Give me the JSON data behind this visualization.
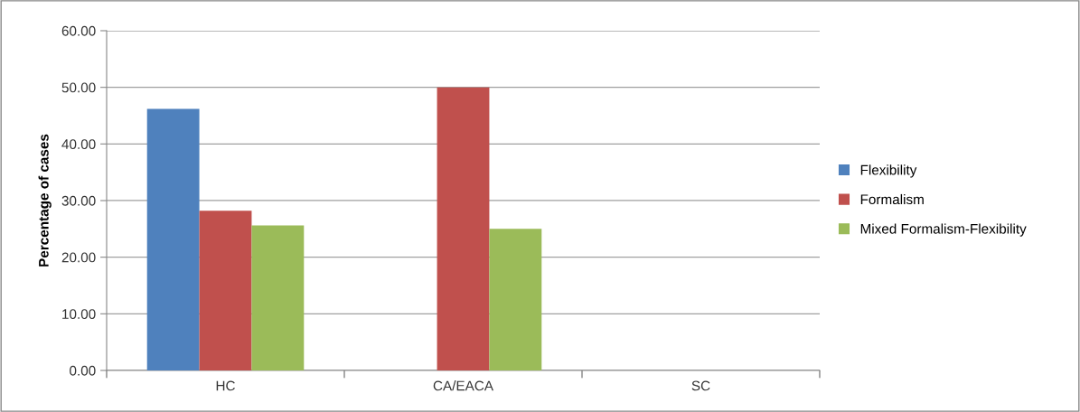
{
  "chart_data": {
    "type": "bar",
    "ylabel": "Percentage of cases",
    "categories": [
      "HC",
      "CA/EACA",
      "SC"
    ],
    "series": [
      {
        "name": "Flexibility",
        "color": "#4f81bd",
        "values": [
          46.2,
          0,
          0
        ]
      },
      {
        "name": "Formalism",
        "color": "#c0504d",
        "values": [
          28.2,
          50,
          0
        ]
      },
      {
        "name": "Mixed Formalism-Flexibility",
        "color": "#9bbb59",
        "values": [
          25.6,
          25,
          0
        ]
      }
    ],
    "ylim": [
      0,
      60
    ],
    "yticks": [
      {
        "value": 0,
        "label": "0.00"
      },
      {
        "value": 10,
        "label": "10.00"
      },
      {
        "value": 20,
        "label": "20.00"
      },
      {
        "value": 30,
        "label": "30.00"
      },
      {
        "value": 40,
        "label": "40.00"
      },
      {
        "value": 50,
        "label": "50.00"
      },
      {
        "value": 60,
        "label": "60.00"
      }
    ],
    "grid": "y",
    "legend": "right"
  }
}
